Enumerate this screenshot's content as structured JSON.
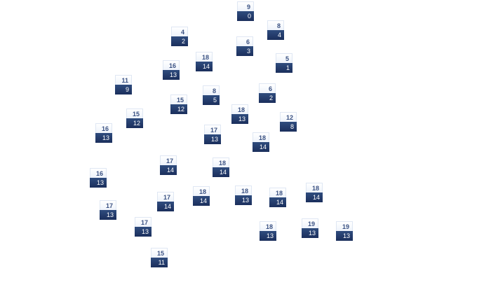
{
  "nodes": [
    {
      "top": "9",
      "bottom": "0"
    },
    {
      "top": "8",
      "bottom": "4"
    },
    {
      "top": "4",
      "bottom": "2"
    },
    {
      "top": "6",
      "bottom": "3"
    },
    {
      "top": "5",
      "bottom": "1"
    },
    {
      "top": "18",
      "bottom": "14"
    },
    {
      "top": "16",
      "bottom": "13"
    },
    {
      "top": "11",
      "bottom": "9"
    },
    {
      "top": "8",
      "bottom": "5"
    },
    {
      "top": "6",
      "bottom": "2"
    },
    {
      "top": "15",
      "bottom": "12"
    },
    {
      "top": "15",
      "bottom": "12"
    },
    {
      "top": "18",
      "bottom": "13"
    },
    {
      "top": "12",
      "bottom": "8"
    },
    {
      "top": "16",
      "bottom": "13"
    },
    {
      "top": "17",
      "bottom": "13"
    },
    {
      "top": "18",
      "bottom": "14"
    },
    {
      "top": "17",
      "bottom": "14"
    },
    {
      "top": "18",
      "bottom": "14"
    },
    {
      "top": "16",
      "bottom": "13"
    },
    {
      "top": "18",
      "bottom": "14"
    },
    {
      "top": "18",
      "bottom": "13"
    },
    {
      "top": "18",
      "bottom": "14"
    },
    {
      "top": "18",
      "bottom": "14"
    },
    {
      "top": "17",
      "bottom": "14"
    },
    {
      "top": "17",
      "bottom": "13"
    },
    {
      "top": "17",
      "bottom": "13"
    },
    {
      "top": "18",
      "bottom": "13"
    },
    {
      "top": "19",
      "bottom": "13"
    },
    {
      "top": "19",
      "bottom": "13"
    },
    {
      "top": "15",
      "bottom": "11"
    }
  ]
}
